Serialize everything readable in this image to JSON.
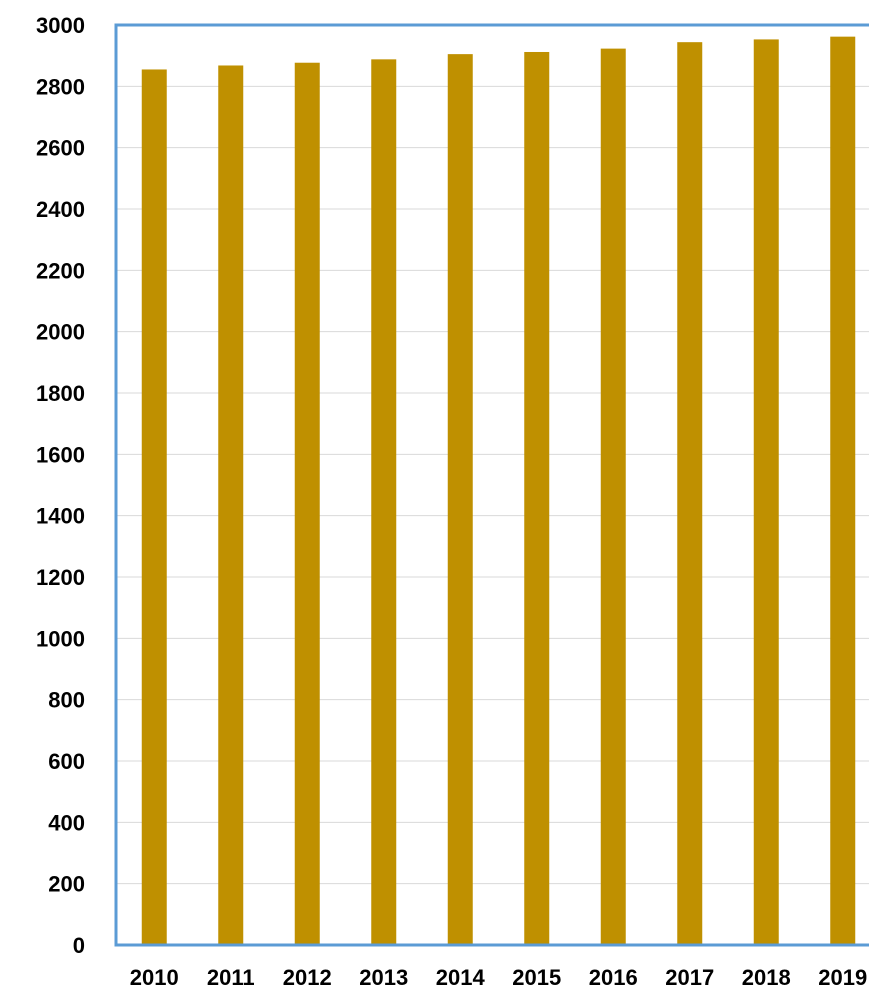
{
  "chart_data": {
    "type": "bar",
    "categories": [
      "2010",
      "2011",
      "2012",
      "2013",
      "2014",
      "2015",
      "2016",
      "2017",
      "2018",
      "2019"
    ],
    "series": [
      {
        "values": [
          2855,
          2868,
          2877,
          2888,
          2905,
          2912,
          2923,
          2944,
          2953,
          2962
        ]
      }
    ],
    "title": "",
    "xlabel": "",
    "ylabel": "",
    "ylim": [
      0,
      3000
    ],
    "yticks": [
      0,
      200,
      400,
      600,
      800,
      1000,
      1200,
      1400,
      1600,
      1800,
      2000,
      2200,
      2400,
      2600,
      2800,
      3000
    ],
    "grid": true,
    "legend": "none",
    "colors": {
      "bar": "#BF9000",
      "plot_border": "#5B9BD5",
      "gridline": "#D9D9D9",
      "axis": "#5B9BD5"
    }
  }
}
